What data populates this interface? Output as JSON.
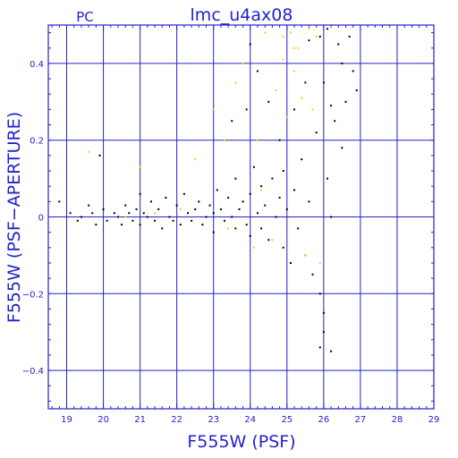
{
  "chart_data": {
    "type": "scatter",
    "title": "lmc_u4ax08",
    "subtitle": "PC",
    "xlabel": "F555W (PSF)",
    "ylabel": "F555W (PSF−APERTURE)",
    "xlim": [
      18.5,
      29
    ],
    "ylim": [
      -0.5,
      0.5
    ],
    "xticks": [
      19,
      20,
      21,
      22,
      23,
      24,
      25,
      26,
      27,
      28,
      29
    ],
    "yticks": [
      -0.4,
      -0.2,
      0,
      0.2,
      0.4
    ],
    "xtick_labels": [
      "19",
      "20",
      "21",
      "22",
      "23",
      "24",
      "25",
      "26",
      "27",
      "28",
      "29"
    ],
    "ytick_labels": [
      "−0.4",
      "−0.2",
      "0",
      "0.2",
      "0.4"
    ],
    "grid": true,
    "colors": {
      "axes": "#2222cc",
      "main": "#000000",
      "rejected": "#e8d020"
    },
    "series": [
      {
        "color": "#000000",
        "points": [
          [
            18.8,
            0.04
          ],
          [
            19.1,
            0.01
          ],
          [
            19.3,
            -0.01
          ],
          [
            19.4,
            0.0
          ],
          [
            19.6,
            0.03
          ],
          [
            19.7,
            0.01
          ],
          [
            19.8,
            -0.02
          ],
          [
            19.9,
            0.16
          ],
          [
            20.0,
            0.02
          ],
          [
            20.1,
            -0.01
          ],
          [
            20.3,
            0.01
          ],
          [
            20.4,
            0.0
          ],
          [
            20.5,
            -0.02
          ],
          [
            20.6,
            0.03
          ],
          [
            20.7,
            0.01
          ],
          [
            20.8,
            -0.01
          ],
          [
            20.9,
            0.02
          ],
          [
            21.0,
            0.06
          ],
          [
            21.0,
            -0.02
          ],
          [
            21.1,
            0.01
          ],
          [
            21.2,
            0.0
          ],
          [
            21.3,
            0.04
          ],
          [
            21.4,
            -0.01
          ],
          [
            21.5,
            0.02
          ],
          [
            21.6,
            -0.03
          ],
          [
            21.7,
            0.05
          ],
          [
            21.8,
            0.0
          ],
          [
            21.9,
            -0.01
          ],
          [
            22.0,
            0.03
          ],
          [
            22.1,
            -0.02
          ],
          [
            22.2,
            0.06
          ],
          [
            22.3,
            0.01
          ],
          [
            22.4,
            -0.01
          ],
          [
            22.5,
            0.02
          ],
          [
            22.6,
            0.04
          ],
          [
            22.7,
            -0.02
          ],
          [
            22.8,
            0.0
          ],
          [
            22.9,
            0.03
          ],
          [
            23.0,
            0.01
          ],
          [
            23.0,
            -0.04
          ],
          [
            23.1,
            0.07
          ],
          [
            23.2,
            0.02
          ],
          [
            23.3,
            -0.01
          ],
          [
            23.4,
            0.05
          ],
          [
            23.5,
            0.0
          ],
          [
            23.6,
            0.1
          ],
          [
            23.6,
            -0.03
          ],
          [
            23.7,
            0.02
          ],
          [
            23.8,
            0.04
          ],
          [
            23.9,
            -0.02
          ],
          [
            24.0,
            0.06
          ],
          [
            24.0,
            -0.05
          ],
          [
            24.1,
            0.13
          ],
          [
            24.2,
            0.01
          ],
          [
            24.3,
            0.08
          ],
          [
            24.3,
            -0.03
          ],
          [
            24.4,
            0.03
          ],
          [
            24.5,
            -0.06
          ],
          [
            24.6,
            0.1
          ],
          [
            24.7,
            0.0
          ],
          [
            24.8,
            0.05
          ],
          [
            24.9,
            -0.08
          ],
          [
            24.9,
            0.12
          ],
          [
            25.0,
            0.02
          ],
          [
            25.1,
            -0.12
          ],
          [
            25.2,
            0.07
          ],
          [
            25.3,
            -0.03
          ],
          [
            25.4,
            0.15
          ],
          [
            25.5,
            -0.1
          ],
          [
            25.6,
            0.04
          ],
          [
            25.7,
            -0.15
          ],
          [
            25.8,
            0.22
          ],
          [
            25.9,
            -0.2
          ],
          [
            26.0,
            0.35
          ],
          [
            26.0,
            -0.25
          ],
          [
            26.1,
            0.1
          ],
          [
            26.2,
            -0.35
          ],
          [
            26.3,
            0.25
          ],
          [
            26.4,
            0.45
          ],
          [
            26.5,
            0.4
          ],
          [
            26.6,
            0.3
          ],
          [
            26.7,
            0.47
          ],
          [
            26.8,
            0.38
          ],
          [
            26.9,
            0.33
          ],
          [
            24.0,
            0.45
          ],
          [
            25.9,
            0.47
          ],
          [
            25.9,
            -0.34
          ],
          [
            26.0,
            -0.3
          ],
          [
            24.5,
            0.3
          ],
          [
            25.2,
            0.28
          ],
          [
            25.5,
            0.35
          ],
          [
            24.8,
            0.2
          ],
          [
            26.2,
            0.0
          ],
          [
            26.1,
            0.49
          ],
          [
            25.6,
            0.46
          ],
          [
            23.5,
            0.25
          ],
          [
            23.9,
            0.28
          ],
          [
            24.2,
            0.38
          ],
          [
            26.2,
            0.29
          ],
          [
            26.5,
            0.18
          ]
        ]
      },
      {
        "color": "#e8d020",
        "points": [
          [
            19.6,
            0.17
          ],
          [
            21.0,
            0.13
          ],
          [
            22.5,
            0.15
          ],
          [
            23.0,
            0.28
          ],
          [
            23.3,
            0.2
          ],
          [
            23.6,
            0.35
          ],
          [
            24.4,
            0.48
          ],
          [
            24.9,
            0.41
          ],
          [
            25.1,
            0.48
          ],
          [
            25.3,
            0.44
          ],
          [
            25.6,
            0.49
          ],
          [
            25.8,
            0.47
          ],
          [
            25.2,
            0.38
          ],
          [
            24.7,
            0.33
          ],
          [
            25.0,
            0.26
          ],
          [
            25.4,
            0.31
          ],
          [
            25.7,
            0.28
          ],
          [
            23.8,
            0.4
          ],
          [
            24.2,
            0.2
          ],
          [
            25.5,
            -0.1
          ],
          [
            24.3,
            0.07
          ],
          [
            21.4,
            0.01
          ],
          [
            20.6,
            0.0
          ],
          [
            22.1,
            0.02
          ],
          [
            23.4,
            -0.03
          ],
          [
            24.6,
            -0.06
          ],
          [
            25.9,
            -0.12
          ],
          [
            24.1,
            -0.08
          ],
          [
            25.2,
            0.44
          ],
          [
            24.9,
            0.47
          ]
        ]
      }
    ]
  }
}
